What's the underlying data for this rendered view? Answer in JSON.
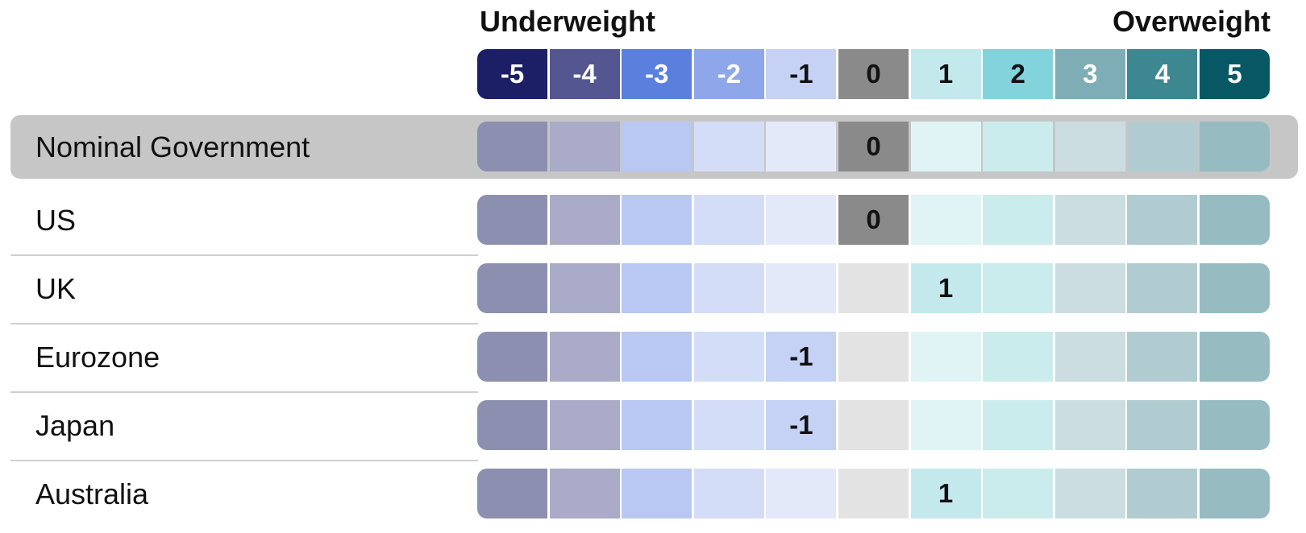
{
  "chart_data": {
    "type": "table",
    "header_left": "Underweight",
    "header_right": "Overweight",
    "scale": [
      -5,
      -4,
      -3,
      -2,
      -1,
      0,
      1,
      2,
      3,
      4,
      5
    ],
    "rows": [
      {
        "label": "Nominal Government",
        "value": 0,
        "highlight": true
      },
      {
        "label": "US",
        "value": 0
      },
      {
        "label": "UK",
        "value": 1
      },
      {
        "label": "Eurozone",
        "value": -1
      },
      {
        "label": "Japan",
        "value": -1
      },
      {
        "label": "Australia",
        "value": 1
      }
    ]
  },
  "colors": {
    "header": [
      "#1c1f66",
      "#535690",
      "#5a7fdd",
      "#8ea7ea",
      "#c5d1f5",
      "#8a8a8a",
      "#c3e9ed",
      "#82d3db",
      "#7eadb5",
      "#3d8791",
      "#075864"
    ],
    "muted": [
      "#8c8faf",
      "#a9abc8",
      "#b8c8f2",
      "#d3ddf7",
      "#e3e9f9",
      "#e3e3e3",
      "#e0f4f5",
      "#cbeced",
      "#ccdde1",
      "#b0ccd0",
      "#96bcc2"
    ],
    "header_text_dark_indices": [
      4,
      5,
      6,
      7
    ]
  }
}
